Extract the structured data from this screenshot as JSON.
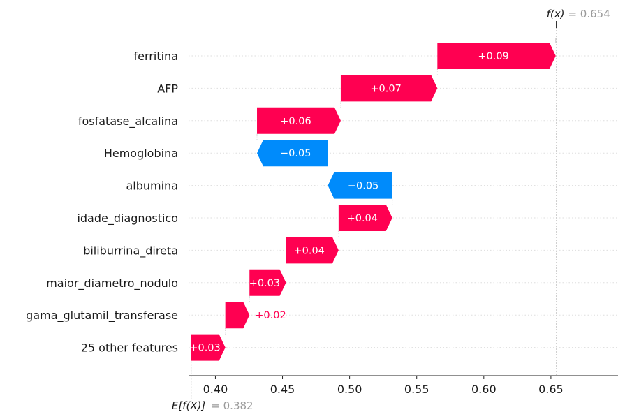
{
  "chart_data": {
    "type": "waterfall",
    "base_value": 0.382,
    "final_value": 0.654,
    "base_label": {
      "expr": "E[f(X)]",
      "eq": "= 0.382"
    },
    "final_label": {
      "expr": "f(x)",
      "eq": "= 0.654"
    },
    "xlim": [
      0.38,
      0.7
    ],
    "ticks": [
      {
        "value": 0.4,
        "label": "0.40"
      },
      {
        "value": 0.45,
        "label": "0.45"
      },
      {
        "value": 0.5,
        "label": "0.50"
      },
      {
        "value": 0.55,
        "label": "0.55"
      },
      {
        "value": 0.6,
        "label": "0.60"
      },
      {
        "value": 0.65,
        "label": "0.65"
      }
    ],
    "colors": {
      "positive": "#ff0051",
      "negative": "#008bfb"
    },
    "features": [
      {
        "name": "ferritina",
        "start": 0.5654,
        "end": 0.6536,
        "label": "+0.09"
      },
      {
        "name": "AFP",
        "start": 0.4934,
        "end": 0.5654,
        "label": "+0.07"
      },
      {
        "name": "fosfatase_alcalina",
        "start": 0.431,
        "end": 0.4934,
        "label": "+0.06"
      },
      {
        "name": "Hemoglobina",
        "start": 0.4838,
        "end": 0.431,
        "label": "−0.05"
      },
      {
        "name": "albumina",
        "start": 0.5318,
        "end": 0.4838,
        "label": "−0.05"
      },
      {
        "name": "idade_diagnostico",
        "start": 0.4918,
        "end": 0.5318,
        "label": "+0.04"
      },
      {
        "name": "biliburrina_direta",
        "start": 0.4526,
        "end": 0.4918,
        "label": "+0.04"
      },
      {
        "name": "maior_diametro_nodulo",
        "start": 0.4254,
        "end": 0.4526,
        "label": "+0.03"
      },
      {
        "name": "gama_glutamil_transferase",
        "start": 0.4074,
        "end": 0.4254,
        "label": "+0.02"
      },
      {
        "name": "25 other features",
        "start": 0.3818,
        "end": 0.4074,
        "label": "+0.03"
      }
    ]
  }
}
